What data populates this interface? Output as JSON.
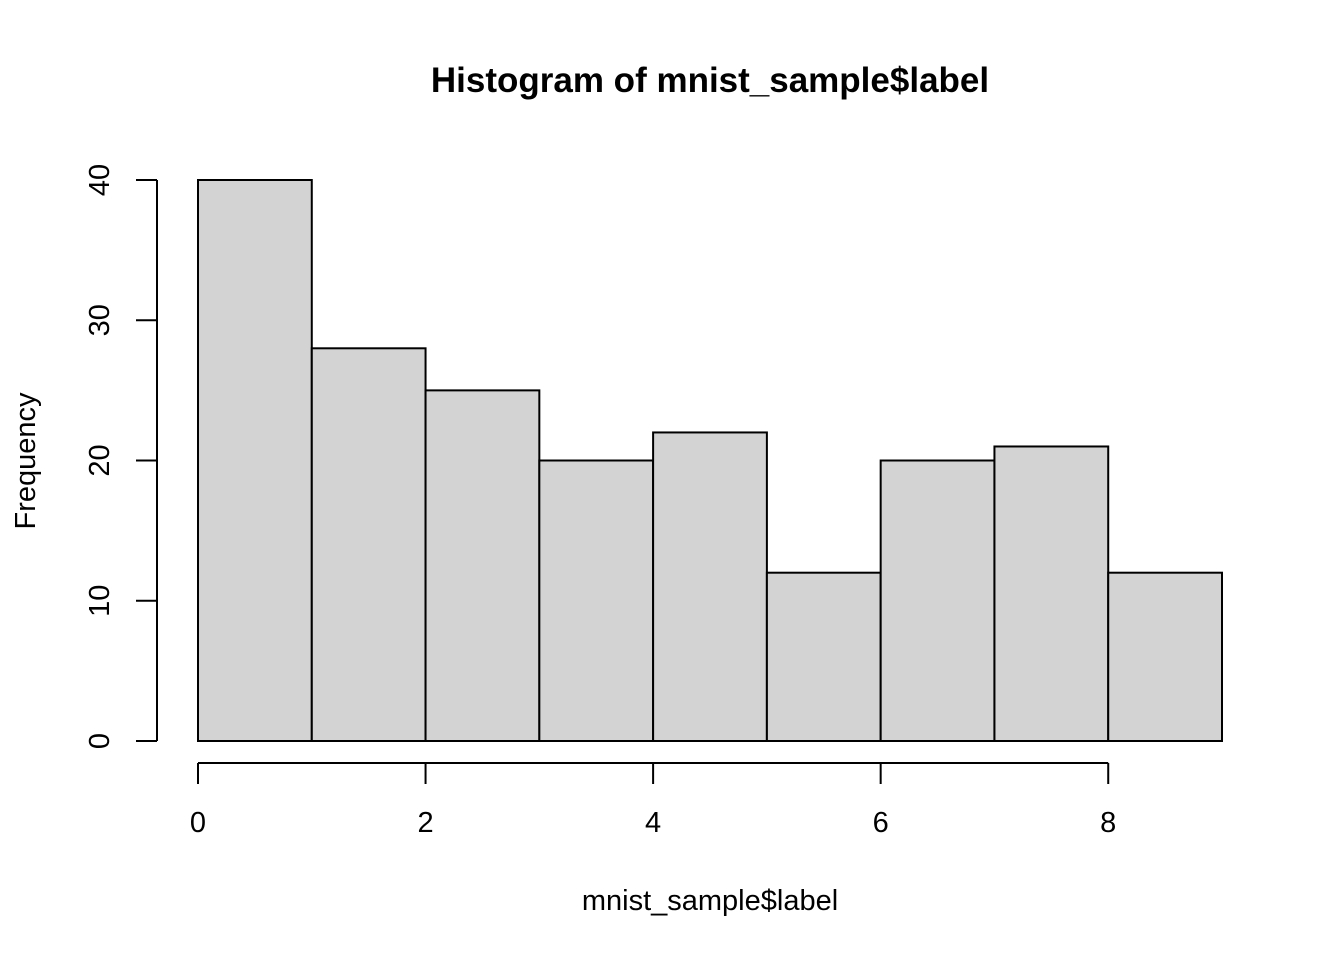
{
  "chart_data": {
    "type": "bar",
    "title": "Histogram of mnist_sample$label",
    "xlabel": "mnist_sample$label",
    "ylabel": "Frequency",
    "bins": [
      {
        "x0": 0,
        "x1": 1,
        "count": 40
      },
      {
        "x0": 1,
        "x1": 2,
        "count": 28
      },
      {
        "x0": 2,
        "x1": 3,
        "count": 25
      },
      {
        "x0": 3,
        "x1": 4,
        "count": 20
      },
      {
        "x0": 4,
        "x1": 5,
        "count": 22
      },
      {
        "x0": 5,
        "x1": 6,
        "count": 12
      },
      {
        "x0": 6,
        "x1": 7,
        "count": 20
      },
      {
        "x0": 7,
        "x1": 8,
        "count": 21
      },
      {
        "x0": 8,
        "x1": 9,
        "count": 12
      }
    ],
    "x_ticks": [
      "0",
      "2",
      "4",
      "6",
      "8"
    ],
    "y_ticks": [
      "0",
      "10",
      "20",
      "30",
      "40"
    ],
    "xlim": [
      0,
      9
    ],
    "ylim": [
      0,
      40
    ],
    "bar_color": "#d3d3d3",
    "grid": false
  }
}
